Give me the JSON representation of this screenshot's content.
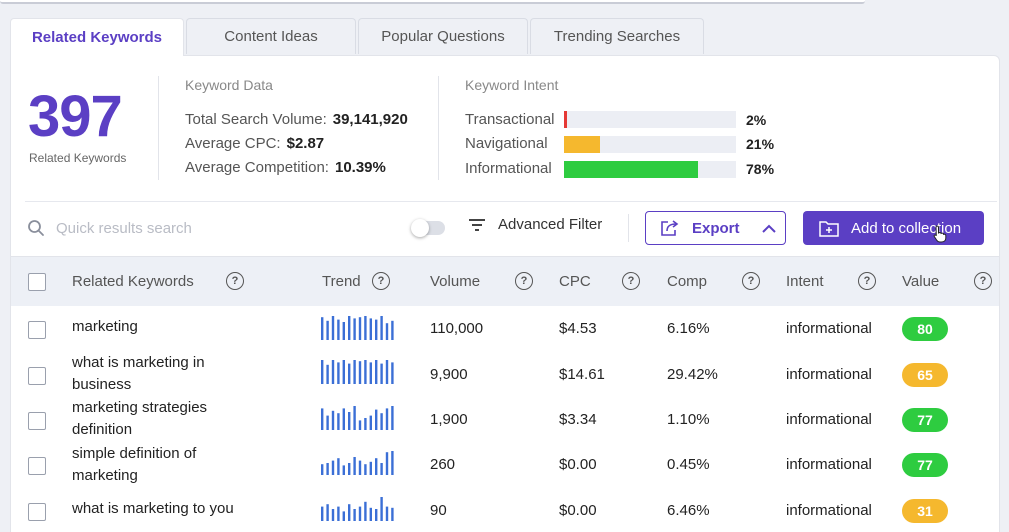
{
  "tabs": [
    "Related Keywords",
    "Content Ideas",
    "Popular Questions",
    "Trending Searches"
  ],
  "summary": {
    "count": "397",
    "count_label": "Related Keywords"
  },
  "keyword_data": {
    "title": "Keyword Data",
    "total_search_volume_label": "Total Search Volume:",
    "total_search_volume": "39,141,920",
    "avg_cpc_label": "Average CPC:",
    "avg_cpc": "$2.87",
    "avg_comp_label": "Average Competition:",
    "avg_comp": "10.39%"
  },
  "keyword_intent": {
    "title": "Keyword Intent",
    "items": [
      {
        "label": "Transactional",
        "pct": "2%",
        "fraction": 0.02,
        "color": "#e53935"
      },
      {
        "label": "Navigational",
        "pct": "21%",
        "fraction": 0.21,
        "color": "#f5b82e"
      },
      {
        "label": "Informational",
        "pct": "78%",
        "fraction": 0.78,
        "color": "#2ecc40"
      }
    ]
  },
  "toolbar": {
    "search_placeholder": "Quick results search",
    "filter_label": "Advanced Filter",
    "export_label": "Export",
    "add_label": "Add to collection"
  },
  "columns": [
    "Related Keywords",
    "Trend",
    "Volume",
    "CPC",
    "Comp",
    "Intent",
    "Value"
  ],
  "rows": [
    {
      "keyword": "marketing",
      "volume": "110,000",
      "cpc": "$4.53",
      "comp": "6.16%",
      "intent": "informational",
      "value": "80",
      "value_color": "#2ecc40",
      "trend": [
        0.95,
        0.8,
        1,
        0.85,
        0.75,
        1,
        0.9,
        0.95,
        1,
        0.9,
        0.85,
        1,
        0.7,
        0.8
      ]
    },
    {
      "keyword": "what is marketing in business",
      "volume": "9,900",
      "cpc": "$14.61",
      "comp": "29.42%",
      "intent": "informational",
      "value": "65",
      "value_color": "#f5b82e",
      "trend": [
        1,
        0.8,
        1,
        0.9,
        1,
        0.85,
        1,
        0.95,
        1,
        0.9,
        1,
        0.85,
        1,
        0.9
      ]
    },
    {
      "keyword": "marketing strategies definition",
      "volume": "1,900",
      "cpc": "$3.34",
      "comp": "1.10%",
      "intent": "informational",
      "value": "77",
      "value_color": "#2ecc40",
      "trend": [
        0.9,
        0.6,
        0.8,
        0.7,
        0.9,
        0.75,
        1,
        0.4,
        0.5,
        0.6,
        0.85,
        0.7,
        0.9,
        1
      ]
    },
    {
      "keyword": "simple definition of marketing",
      "volume": "260",
      "cpc": "$0.00",
      "comp": "0.45%",
      "intent": "informational",
      "value": "77",
      "value_color": "#2ecc40",
      "trend": [
        0.45,
        0.5,
        0.6,
        0.7,
        0.4,
        0.5,
        0.75,
        0.6,
        0.45,
        0.55,
        0.7,
        0.5,
        0.95,
        1
      ]
    },
    {
      "keyword": "what is marketing to you",
      "volume": "90",
      "cpc": "$0.00",
      "comp": "6.46%",
      "intent": "informational",
      "value": "31",
      "value_color": "#f5b82e",
      "trend": [
        0.6,
        0.7,
        0.5,
        0.6,
        0.4,
        0.7,
        0.5,
        0.6,
        0.8,
        0.55,
        0.5,
        1,
        0.6,
        0.55
      ]
    }
  ]
}
